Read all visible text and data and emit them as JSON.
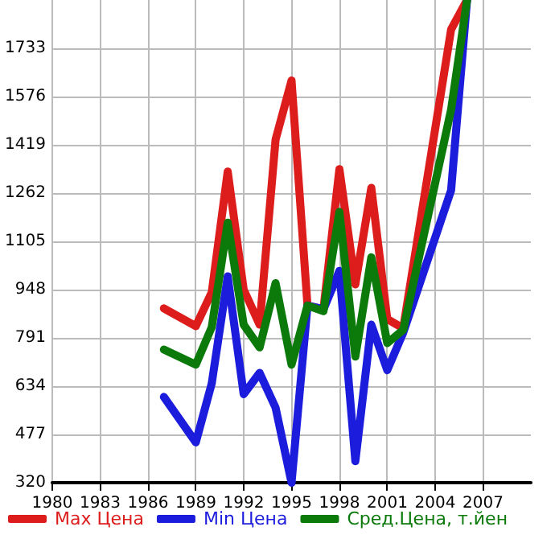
{
  "chart_data": {
    "type": "line",
    "xlim": [
      1980,
      2010
    ],
    "xticks": [
      1980,
      1983,
      1986,
      1989,
      1992,
      1995,
      1998,
      2001,
      2004,
      2007
    ],
    "ylim": [
      320,
      1890
    ],
    "yticks": [
      320,
      477,
      634,
      791,
      948,
      1105,
      1262,
      1419,
      1576,
      1733
    ],
    "grid": true,
    "legend": "bottom",
    "marker": "none",
    "line_style": "solid",
    "x": [
      1987,
      1989,
      1990,
      1991,
      1992,
      1993,
      1994,
      1995,
      1996,
      1997,
      1998,
      1999,
      2000,
      2001,
      2002,
      2005,
      2006
    ],
    "series": [
      {
        "name": "Max Цена",
        "color": "#dd1c1c",
        "values": [
          887,
          829,
          939,
          1332,
          948,
          834,
          1436,
          1628,
          896,
          884,
          1340,
          965,
          1279,
          852,
          822,
          1794,
          1890
        ]
      },
      {
        "name": "Min Цена",
        "color": "#1c1cdd",
        "values": [
          599,
          451,
          643,
          991,
          608,
          677,
          564,
          320,
          896,
          884,
          1009,
          390,
          834,
          686,
          808,
          1271,
          1890
        ]
      },
      {
        "name": "Сред.Цена, т.йен",
        "color": "#0b7a0b",
        "values": [
          753,
          704,
          826,
          1166,
          834,
          760,
          969,
          704,
          896,
          878,
          1201,
          730,
          1053,
          774,
          817,
          1533,
          1890
        ]
      }
    ]
  }
}
